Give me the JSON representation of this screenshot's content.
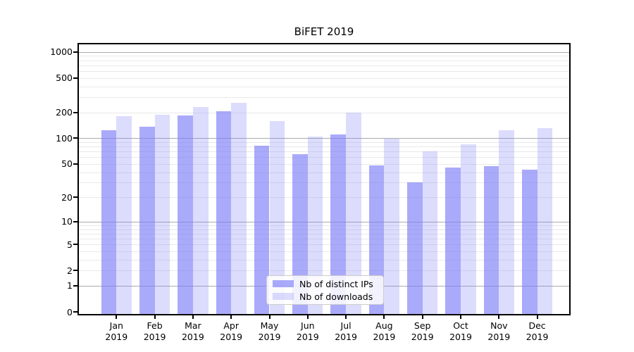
{
  "chart_data": {
    "type": "bar",
    "title": "BiFET 2019",
    "categories": [
      "Jan\n2019",
      "Feb\n2019",
      "Mar\n2019",
      "Apr\n2019",
      "May\n2019",
      "Jun\n2019",
      "Jul\n2019",
      "Aug\n2019",
      "Sep\n2019",
      "Oct\n2019",
      "Nov\n2019",
      "Dec\n2019"
    ],
    "series": [
      {
        "name": "Nb of distinct IPs",
        "color": "rgba(125,125,247,0.65)",
        "values": [
          124,
          136,
          183,
          204,
          82,
          65,
          111,
          48,
          30,
          45,
          47,
          43
        ]
      },
      {
        "name": "Nb of downloads",
        "color": "rgba(125,125,247,0.27)",
        "values": [
          181,
          188,
          232,
          258,
          157,
          105,
          198,
          99,
          70,
          85,
          124,
          132
        ]
      }
    ],
    "y_ticks": [
      0,
      1,
      2,
      5,
      10,
      20,
      50,
      100,
      200,
      500,
      1000
    ],
    "y_scale": "log1p",
    "ylim": [
      0,
      1100
    ],
    "xlabel": "",
    "ylabel": "",
    "grid": true,
    "major_gridlines": [
      1,
      10,
      100,
      1000
    ],
    "legend_position": "lower center",
    "colors": {
      "bar_distinct_ips": "rgba(125,125,247,0.65)",
      "bar_downloads": "rgba(125,125,247,0.27)",
      "major_grid": "#ababab",
      "minor_grid": "#e9e9e9",
      "axis": "#000000"
    }
  }
}
